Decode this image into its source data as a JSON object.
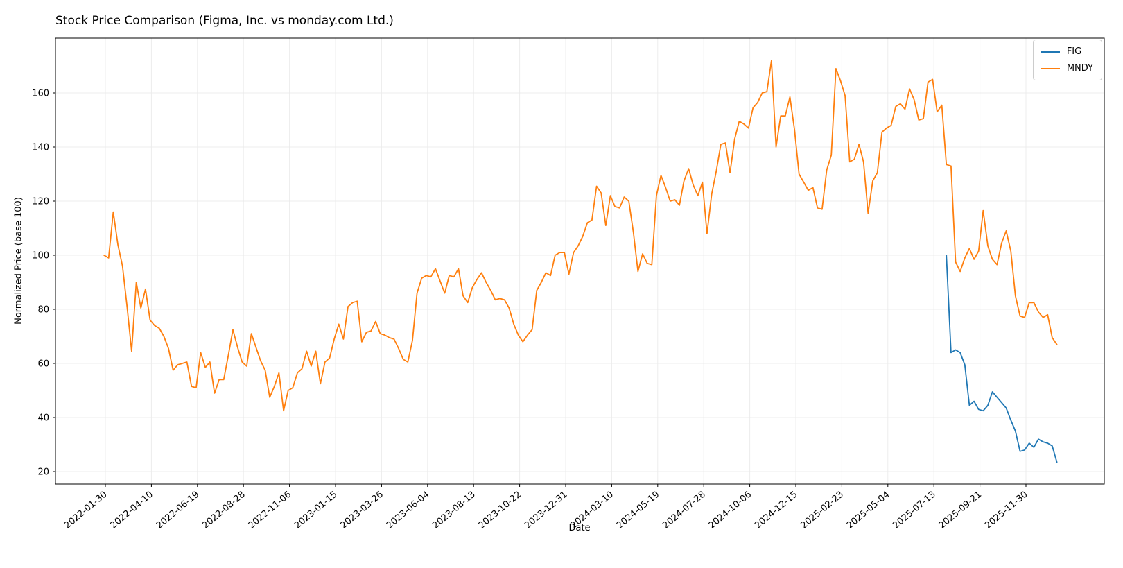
{
  "chart_data": {
    "type": "line",
    "title": "Stock Price Comparison (Figma, Inc. vs monday.com Ltd.)",
    "xlabel": "Date",
    "ylabel": "Normalized Price (base 100)",
    "grid": true,
    "legend_position": "upper right",
    "background_color": "#ffffff",
    "grid_color": "#ececec",
    "axis_color": "#000000",
    "y_ticks": [
      20,
      40,
      60,
      80,
      100,
      120,
      140,
      160
    ],
    "x_tick_labels": [
      "2022-01-30",
      "2022-04-10",
      "2022-06-19",
      "2022-08-28",
      "2022-11-06",
      "2023-01-15",
      "2023-03-26",
      "2023-06-04",
      "2023-08-13",
      "2023-10-22",
      "2023-12-31",
      "2024-03-10",
      "2024-05-19",
      "2024-07-28",
      "2024-10-06",
      "2024-12-15",
      "2025-02-23",
      "2025-05-04",
      "2025-07-13",
      "2025-09-21",
      "2025-11-30"
    ],
    "series": [
      {
        "name": "FIG",
        "color": "#1f77b4",
        "start_date": "2025-08-01",
        "interval_days": 7,
        "values": [
          100,
          64,
          65,
          64,
          59.5,
          44.5,
          46,
          43,
          42.5,
          44.5,
          49.5,
          47.5,
          45.5,
          43.5,
          39,
          35,
          27.5,
          28,
          30.5,
          29,
          32,
          31,
          30.5,
          29.5,
          23.5
        ]
      },
      {
        "name": "MNDY",
        "color": "#ff7f0e",
        "start_date": "2022-01-28",
        "interval_days": 7,
        "values": [
          100,
          99,
          116,
          104,
          96,
          81,
          64.5,
          90,
          80.5,
          87.5,
          76,
          74,
          73,
          70,
          65.5,
          57.5,
          59.5,
          60,
          60.5,
          51.5,
          51,
          64,
          58.5,
          60.5,
          49,
          54,
          54,
          63,
          72.5,
          66,
          60.5,
          59,
          71,
          66,
          61,
          57.5,
          47.5,
          51.5,
          56.5,
          42.5,
          50,
          51,
          56.5,
          58,
          64.5,
          59,
          64.5,
          52.5,
          60.5,
          62,
          69,
          74.5,
          69,
          81,
          82.5,
          83,
          68,
          71.5,
          72,
          75.5,
          71,
          70.5,
          69.5,
          69,
          65.5,
          61.5,
          60.5,
          68.5,
          86,
          91.5,
          92.5,
          92,
          95,
          90.5,
          86,
          92.5,
          92,
          95,
          85,
          82.5,
          88,
          91,
          93.5,
          90,
          87,
          83.5,
          84,
          83.5,
          80.5,
          74.5,
          70.5,
          68,
          70.5,
          72.5,
          87,
          90,
          93.5,
          92.5,
          100,
          101,
          101,
          93,
          101,
          103.5,
          107,
          112,
          113,
          125.5,
          123,
          111,
          122,
          118,
          117.5,
          121.5,
          120,
          108.5,
          94,
          100.5,
          97,
          96.5,
          122,
          129.5,
          125,
          120,
          120.5,
          118.5,
          127.5,
          132,
          126,
          122,
          127,
          108,
          122.5,
          131,
          141,
          141.5,
          130.5,
          143,
          149.5,
          148.5,
          147,
          154.5,
          156.5,
          160,
          160.5,
          172,
          140,
          151.5,
          151.5,
          158.5,
          146.5,
          130,
          127,
          124,
          125,
          117.5,
          117,
          131.5,
          137,
          169,
          164.5,
          159,
          134.5,
          135.5,
          141,
          134.5,
          115.5,
          127.5,
          130.5,
          145.5,
          147,
          148,
          155,
          156,
          154,
          161.5,
          157.5,
          150,
          150.5,
          164,
          165,
          153,
          155.5,
          133.5,
          133,
          97.5,
          94,
          99,
          102.5,
          98.5,
          101.5,
          116.5,
          103.5,
          98.5,
          96.5,
          104.5,
          109,
          101.5,
          85,
          77.5,
          77,
          82.5,
          82.5,
          79,
          77,
          78,
          69.5,
          67
        ]
      }
    ]
  }
}
